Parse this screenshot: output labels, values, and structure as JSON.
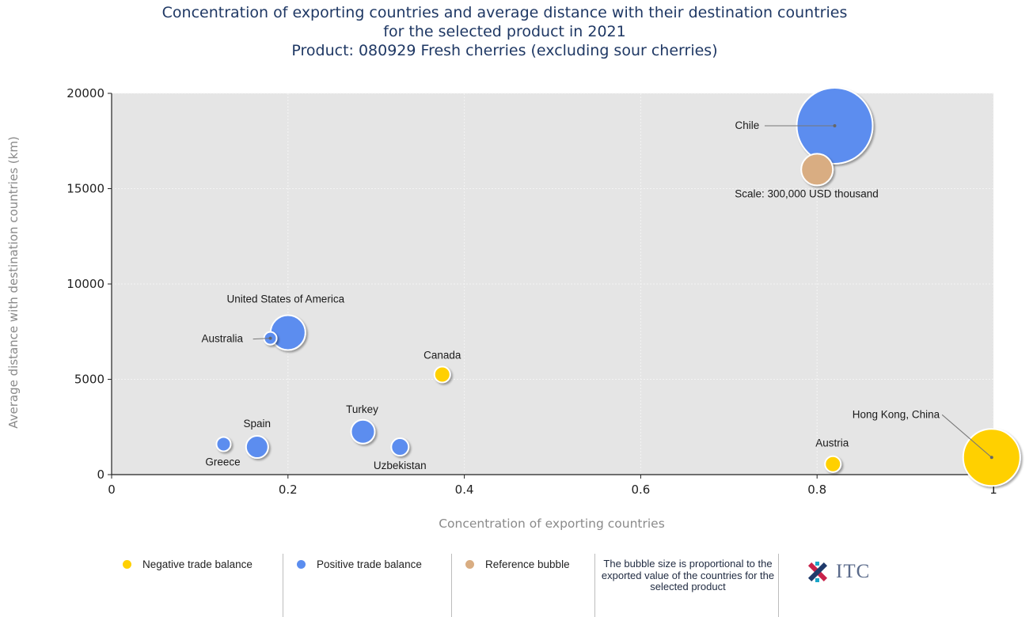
{
  "title_lines": [
    "Concentration of exporting countries and average distance with their destination countries",
    "for the selected product in 2021",
    "Product: 080929 Fresh cherries (excluding sour cherries)"
  ],
  "chart_data": {
    "type": "scatter",
    "xlabel": "Concentration of exporting countries",
    "ylabel": "Average distance with destination countries (km)",
    "xlim": [
      0,
      1
    ],
    "ylim": [
      0,
      20000
    ],
    "x_ticks": [
      "0",
      "0.2",
      "0.4",
      "0.6",
      "0.8",
      "1"
    ],
    "y_ticks": [
      "0",
      "5000",
      "10000",
      "15000",
      "20000"
    ],
    "grid": true,
    "colors": {
      "negative": "#ffd000",
      "positive": "#5b8def",
      "reference": "#d9ad82"
    },
    "points": [
      {
        "label": "Chile",
        "x": 0.82,
        "y": 18300,
        "size": 48,
        "group": "positive"
      },
      {
        "label": "Scale: 300,000 USD thousand",
        "x": 0.8,
        "y": 16000,
        "size": 20,
        "group": "reference"
      },
      {
        "label": "United States of America",
        "x": 0.2,
        "y": 7450,
        "size": 22,
        "group": "positive"
      },
      {
        "label": "Australia",
        "x": 0.18,
        "y": 7150,
        "size": 8,
        "group": "positive"
      },
      {
        "label": "Canada",
        "x": 0.375,
        "y": 5250,
        "size": 10,
        "group": "negative"
      },
      {
        "label": "Turkey",
        "x": 0.285,
        "y": 2250,
        "size": 15,
        "group": "positive"
      },
      {
        "label": "Spain",
        "x": 0.165,
        "y": 1450,
        "size": 14,
        "group": "positive"
      },
      {
        "label": "Greece",
        "x": 0.127,
        "y": 1600,
        "size": 9,
        "group": "positive"
      },
      {
        "label": "Uzbekistan",
        "x": 0.327,
        "y": 1450,
        "size": 11,
        "group": "positive"
      },
      {
        "label": "Austria",
        "x": 0.818,
        "y": 550,
        "size": 10,
        "group": "negative"
      },
      {
        "label": "Hong Kong, China",
        "x": 0.998,
        "y": 900,
        "size": 36,
        "group": "negative"
      }
    ]
  },
  "legend": {
    "negative": "Negative trade balance",
    "positive": "Positive trade balance",
    "reference": "Reference bubble"
  },
  "note": "The bubble size is proportional to the exported value of the countries for the selected product",
  "logo": {
    "text": "ITC",
    "icon": "itc-logo-icon"
  }
}
